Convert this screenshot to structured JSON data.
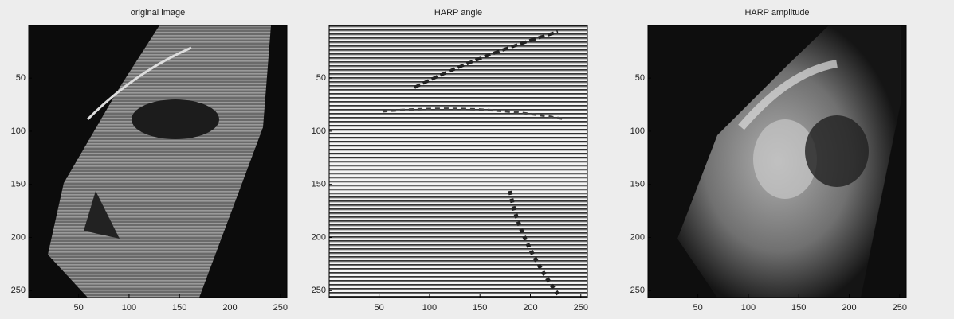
{
  "panels": [
    {
      "title": "original image",
      "xlim": [
        0.5,
        256.5
      ],
      "ylim": [
        0.5,
        256.5
      ],
      "xticks": [
        50,
        100,
        150,
        200,
        250
      ],
      "yticks": [
        50,
        100,
        150,
        200,
        250
      ]
    },
    {
      "title": "HARP angle",
      "xlim": [
        0.5,
        256.5
      ],
      "ylim": [
        0.5,
        256.5
      ],
      "xticks": [
        50,
        100,
        150,
        200,
        250
      ],
      "yticks": [
        50,
        100,
        150,
        200,
        250
      ]
    },
    {
      "title": "HARP amplitude",
      "xlim": [
        0.5,
        256.5
      ],
      "ylim": [
        0.5,
        256.5
      ],
      "xticks": [
        50,
        100,
        150,
        200,
        250
      ],
      "yticks": [
        50,
        100,
        150,
        200,
        250
      ]
    }
  ]
}
